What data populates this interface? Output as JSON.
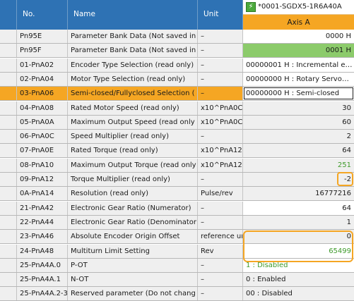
{
  "header": {
    "col_no": "No.",
    "col_name": "Name",
    "col_unit": "Unit",
    "device": "*0001-SGDX5-1R6A40A",
    "axis": "Axis A"
  },
  "rows": [
    {
      "no": "Pn95E",
      "name": "Parameter Bank Data (Not saved in",
      "unit": "–",
      "value": "0000 H",
      "align": "r",
      "style": ""
    },
    {
      "no": "Pn95F",
      "name": "Parameter Bank Data (Not saved in",
      "unit": "–",
      "value": "0001 H",
      "align": "r",
      "style": "green"
    },
    {
      "no": "01-PnA02",
      "name": "Encoder Type Selection (read only)",
      "unit": "–",
      "value": "00000001 H : Incremental e…",
      "align": "l",
      "style": ""
    },
    {
      "no": "02-PnA04",
      "name": "Motor Type Selection (read only)",
      "unit": "–",
      "value": "00000000 H : Rotary Servo…",
      "align": "l",
      "style": ""
    },
    {
      "no": "03-PnA06",
      "name": "Semi-closed/Fullyclosed Selection (",
      "unit": "–",
      "value": "00000000 H : Semi-closed",
      "align": "l",
      "style": "",
      "selected": true
    },
    {
      "no": "04-PnA08",
      "name": "Rated Motor Speed (read only)",
      "unit": "x10^PnA0C",
      "value": "30",
      "align": "r",
      "style": "gray"
    },
    {
      "no": "05-PnA0A",
      "name": "Maximum Output Speed (read only",
      "unit": "x10^PnA0C",
      "value": "60",
      "align": "r",
      "style": "gray"
    },
    {
      "no": "06-PnA0C",
      "name": "Speed Multiplier (read only)",
      "unit": "–",
      "value": "2",
      "align": "r",
      "style": "gray"
    },
    {
      "no": "07-PnA0E",
      "name": "Rated Torque (read only)",
      "unit": "x10^PnA12",
      "value": "64",
      "align": "r",
      "style": "gray"
    },
    {
      "no": "08-PnA10",
      "name": "Maximum Output Torque (read only",
      "unit": "x10^PnA12",
      "value": "251",
      "align": "r",
      "style": "gray greentext"
    },
    {
      "no": "09-PnA12",
      "name": "Torque Multiplier (read only)",
      "unit": "–",
      "value": "-2",
      "align": "r",
      "style": "gray"
    },
    {
      "no": "0A-PnA14",
      "name": "Resolution (read only)",
      "unit": "Pulse/rev",
      "value": "16777216",
      "align": "r",
      "style": "gray"
    },
    {
      "no": "21-PnA42",
      "name": "Electronic Gear Ratio (Numerator)",
      "unit": "–",
      "value": "64",
      "align": "r",
      "style": ""
    },
    {
      "no": "22-PnA44",
      "name": "Electronic Gear Ratio (Denominator",
      "unit": "–",
      "value": "1",
      "align": "r",
      "style": "gray"
    },
    {
      "no": "23-PnA46",
      "name": "Absolute Encoder Origin Offset",
      "unit": "reference ur",
      "value": "0",
      "align": "r",
      "style": "gray"
    },
    {
      "no": "24-PnA48",
      "name": "Multiturn Limit Setting",
      "unit": "Rev",
      "value": "65499",
      "align": "r",
      "style": "greentext"
    },
    {
      "no": "25-PnA4A.0",
      "name": "P-OT",
      "unit": "–",
      "value": "1 : Disabled",
      "align": "l",
      "style": "greentext"
    },
    {
      "no": "25-PnA4A.1",
      "name": "N-OT",
      "unit": "–",
      "value": "0 : Enabled",
      "align": "l",
      "style": "gray"
    },
    {
      "no": "25-PnA4A.2-3",
      "name": "Reserved parameter (Do not chang",
      "unit": "–",
      "value": "00 : Disabled",
      "align": "l",
      "style": "gray"
    }
  ],
  "colors": {
    "header_blue": "#2e72b4",
    "selection_orange": "#f5a623",
    "changed_green": "#8ccb6b"
  }
}
